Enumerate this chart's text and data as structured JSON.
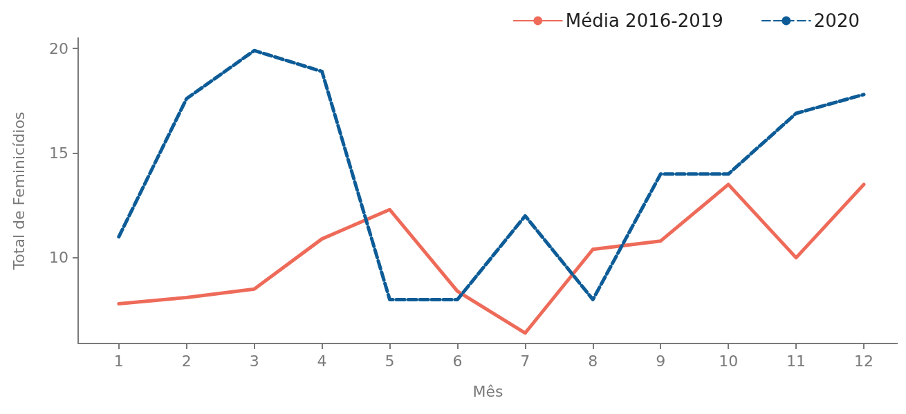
{
  "chart_data": {
    "type": "line",
    "xlabel": "Mês",
    "ylabel": "Total de Feminicídios",
    "x": [
      1,
      2,
      3,
      4,
      5,
      6,
      7,
      8,
      9,
      10,
      11,
      12
    ],
    "xlim": [
      0.4,
      12.5
    ],
    "xticks": [
      1,
      2,
      3,
      4,
      5,
      6,
      7,
      8,
      9,
      10,
      11,
      12
    ],
    "ylim": [
      5.9,
      20.5
    ],
    "yticks": [
      10,
      15,
      20
    ],
    "grid": false,
    "legend": "top right",
    "marker": "none",
    "series": [
      {
        "name": "Média 2016-2019",
        "color": "#ee6a59",
        "line_style": "solid",
        "values": [
          7.8,
          8.1,
          8.5,
          10.9,
          12.3,
          8.4,
          6.4,
          10.4,
          10.8,
          13.5,
          10,
          13.5
        ]
      },
      {
        "name": "2020",
        "color": "#0d5c97",
        "line_style": "dashed",
        "values": [
          11,
          17.6,
          19.9,
          18.9,
          8,
          8,
          12,
          8,
          14,
          14,
          16.9,
          17.8
        ]
      }
    ]
  }
}
